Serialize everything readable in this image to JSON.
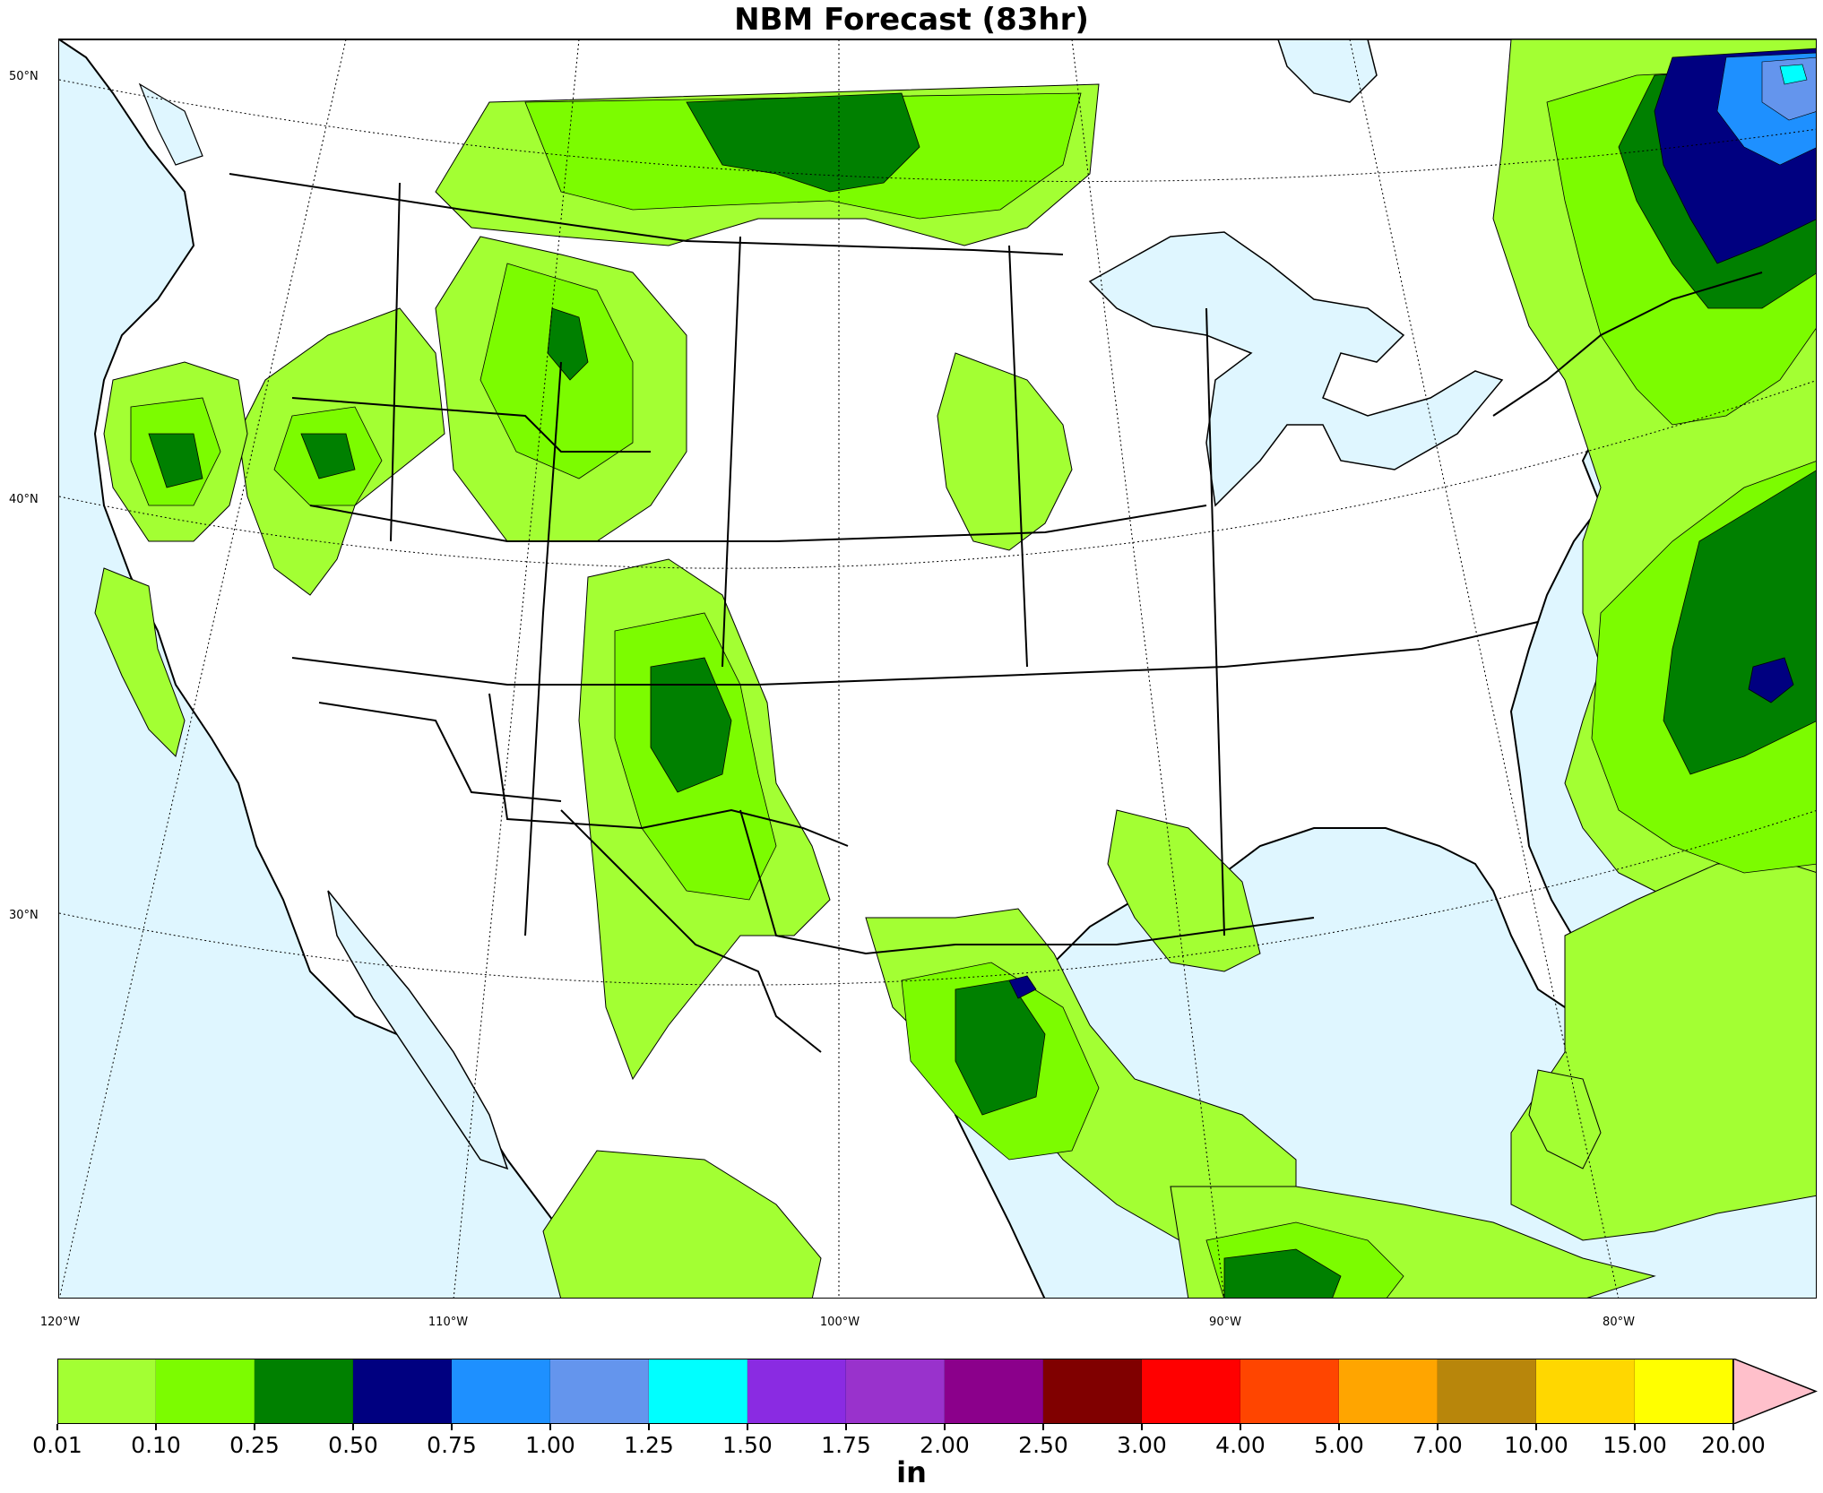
{
  "title": "NBM Forecast (83hr)",
  "map": {
    "ocean_color": "#dff6ff",
    "land_color": "#ffffff",
    "lat_labels": [
      "50°N",
      "40°N",
      "30°N"
    ],
    "lon_labels": [
      "120°W",
      "110°W",
      "100°W",
      "90°W",
      "80°W"
    ]
  },
  "colorbar": {
    "units": "in",
    "tick_labels": [
      "0.01",
      "0.10",
      "0.25",
      "0.50",
      "0.75",
      "1.00",
      "1.25",
      "1.50",
      "1.75",
      "2.00",
      "2.50",
      "3.00",
      "4.00",
      "5.00",
      "7.00",
      "10.00",
      "15.00",
      "20.00"
    ],
    "colors": [
      "#a3ff33",
      "#7cfc00",
      "#008000",
      "#000080",
      "#1e90ff",
      "#6495ed",
      "#00ffff",
      "#8a2be2",
      "#9932cc",
      "#8b008b",
      "#800000",
      "#ff0000",
      "#ff4500",
      "#ffa500",
      "#b8860b",
      "#ffd700",
      "#ffff00"
    ],
    "extend_color": "#ffc0cb"
  }
}
